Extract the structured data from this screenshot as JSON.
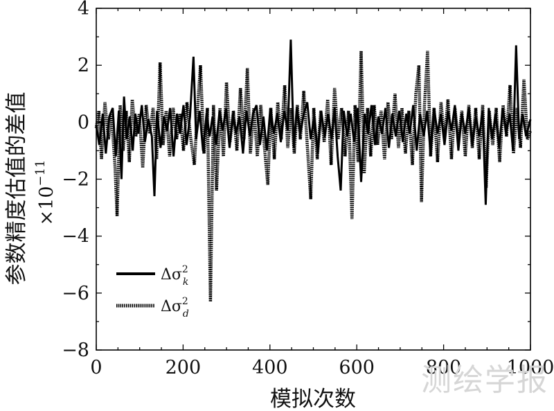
{
  "chart_data": {
    "type": "line",
    "title": "",
    "xlabel": "模拟次数",
    "ylabel": "参数精度估值的差值",
    "y_multiplier": "×10",
    "y_multiplier_exponent": "−11",
    "xlim": [
      0,
      1000
    ],
    "ylim": [
      -8,
      4
    ],
    "x_ticks": [
      0,
      200,
      400,
      600,
      800,
      1000
    ],
    "x_tick_labels": [
      "0",
      "200",
      "400",
      "600",
      "800",
      "1000"
    ],
    "y_ticks": [
      4,
      2,
      0,
      -2,
      -4,
      -6,
      -8
    ],
    "y_tick_labels": [
      "4",
      "2",
      "0",
      "−2",
      "−4",
      "−6",
      "−8"
    ],
    "grid": false,
    "legend_position": "lower-left",
    "series": [
      {
        "name": "Δσ_k^2",
        "label_main": "Δσ",
        "label_sup": "2",
        "label_sub": "k",
        "style": "solid",
        "color": "#000000",
        "points": [
          [
            0,
            -0.1
          ],
          [
            7,
            -0.8
          ],
          [
            15,
            0.3
          ],
          [
            22,
            -1.1
          ],
          [
            30,
            0.2
          ],
          [
            38,
            0.5
          ],
          [
            45,
            -1.2
          ],
          [
            52,
            0.4
          ],
          [
            58,
            -2.0
          ],
          [
            64,
            0.9
          ],
          [
            70,
            -0.6
          ],
          [
            77,
            0.2
          ],
          [
            84,
            -1.0
          ],
          [
            90,
            0.3
          ],
          [
            97,
            -0.4
          ],
          [
            105,
            0.6
          ],
          [
            112,
            -0.7
          ],
          [
            120,
            0.1
          ],
          [
            128,
            -0.5
          ],
          [
            134,
            -2.6
          ],
          [
            140,
            0.4
          ],
          [
            148,
            -0.9
          ],
          [
            156,
            0.2
          ],
          [
            163,
            -0.3
          ],
          [
            170,
            0.5
          ],
          [
            178,
            -1.2
          ],
          [
            186,
            0.3
          ],
          [
            193,
            -0.4
          ],
          [
            201,
            0.6
          ],
          [
            208,
            -0.8
          ],
          [
            216,
            0.2
          ],
          [
            224,
            2.3
          ],
          [
            230,
            -0.6
          ],
          [
            238,
            0.4
          ],
          [
            246,
            -1.0
          ],
          [
            254,
            0.3
          ],
          [
            261,
            -0.5
          ],
          [
            268,
            0.2
          ],
          [
            276,
            -0.8
          ],
          [
            284,
            0.4
          ],
          [
            291,
            -0.3
          ],
          [
            299,
            0.5
          ],
          [
            307,
            -0.9
          ],
          [
            315,
            0.3
          ],
          [
            322,
            -0.4
          ],
          [
            330,
            0.2
          ],
          [
            338,
            -1.1
          ],
          [
            346,
            0.4
          ],
          [
            354,
            -0.5
          ],
          [
            361,
            0.3
          ],
          [
            369,
            0.6
          ],
          [
            377,
            -0.8
          ],
          [
            385,
            0.2
          ],
          [
            393,
            -1.0
          ],
          [
            401,
            0.5
          ],
          [
            409,
            -0.4
          ],
          [
            417,
            0.3
          ],
          [
            425,
            -0.7
          ],
          [
            433,
            0.4
          ],
          [
            441,
            -0.3
          ],
          [
            448,
            2.9
          ],
          [
            455,
            -0.9
          ],
          [
            462,
            0.5
          ],
          [
            470,
            -0.4
          ],
          [
            478,
            0.3
          ],
          [
            486,
            0.7
          ],
          [
            494,
            -0.6
          ],
          [
            502,
            0.2
          ],
          [
            510,
            -1.1
          ],
          [
            518,
            0.4
          ],
          [
            526,
            -0.5
          ],
          [
            534,
            0.3
          ],
          [
            542,
            -0.6
          ],
          [
            549,
            0.5
          ],
          [
            556,
            -1.2
          ],
          [
            563,
            -2.4
          ],
          [
            570,
            0.4
          ],
          [
            578,
            -0.5
          ],
          [
            586,
            0.3
          ],
          [
            594,
            -0.7
          ],
          [
            602,
            0.5
          ],
          [
            610,
            -2.1
          ],
          [
            618,
            0.3
          ],
          [
            626,
            -0.4
          ],
          [
            634,
            0.6
          ],
          [
            642,
            -0.8
          ],
          [
            650,
            0.2
          ],
          [
            658,
            -0.4
          ],
          [
            666,
            0.5
          ],
          [
            674,
            -0.9
          ],
          [
            682,
            0.3
          ],
          [
            690,
            -0.5
          ],
          [
            698,
            0.4
          ],
          [
            706,
            -0.7
          ],
          [
            714,
            0.3
          ],
          [
            722,
            -0.4
          ],
          [
            730,
            0.6
          ],
          [
            738,
            -1.0
          ],
          [
            746,
            0.3
          ],
          [
            754,
            -0.5
          ],
          [
            762,
            0.4
          ],
          [
            770,
            -1.1
          ],
          [
            778,
            0.5
          ],
          [
            786,
            -0.4
          ],
          [
            794,
            0.3
          ],
          [
            802,
            -0.8
          ],
          [
            810,
            0.4
          ],
          [
            818,
            -0.3
          ],
          [
            826,
            0.6
          ],
          [
            834,
            -1.0
          ],
          [
            842,
            0.3
          ],
          [
            850,
            -0.4
          ],
          [
            858,
            0.5
          ],
          [
            866,
            -0.8
          ],
          [
            874,
            0.2
          ],
          [
            882,
            -0.5
          ],
          [
            890,
            0.4
          ],
          [
            897,
            -2.9
          ],
          [
            904,
            0.5
          ],
          [
            912,
            -0.6
          ],
          [
            920,
            0.3
          ],
          [
            928,
            -0.9
          ],
          [
            936,
            0.5
          ],
          [
            944,
            -0.4
          ],
          [
            952,
            0.3
          ],
          [
            960,
            -1.0
          ],
          [
            967,
            2.7
          ],
          [
            974,
            -0.6
          ],
          [
            982,
            0.3
          ],
          [
            990,
            -0.5
          ],
          [
            1000,
            0.1
          ]
        ]
      },
      {
        "name": "Δσ_d^2",
        "label_main": "Δσ",
        "label_sup": "2",
        "label_sub": "d",
        "style": "dotted",
        "color": "#000000",
        "points": [
          [
            0,
            -0.2
          ],
          [
            6,
            0.4
          ],
          [
            12,
            -1.3
          ],
          [
            20,
            0.7
          ],
          [
            28,
            -0.6
          ],
          [
            35,
            0.3
          ],
          [
            43,
            -1.5
          ],
          [
            48,
            -3.3
          ],
          [
            55,
            0.6
          ],
          [
            62,
            -1.0
          ],
          [
            69,
            0.4
          ],
          [
            76,
            -1.4
          ],
          [
            83,
            0.8
          ],
          [
            91,
            -0.5
          ],
          [
            99,
            0.3
          ],
          [
            107,
            -1.6
          ],
          [
            115,
            0.6
          ],
          [
            123,
            -0.4
          ],
          [
            131,
            0.5
          ],
          [
            139,
            -1.3
          ],
          [
            147,
            2.1
          ],
          [
            154,
            -0.8
          ],
          [
            161,
            0.4
          ],
          [
            169,
            -1.2
          ],
          [
            177,
            0.5
          ],
          [
            185,
            -0.6
          ],
          [
            193,
            0.3
          ],
          [
            201,
            -1.0
          ],
          [
            209,
            0.7
          ],
          [
            217,
            -0.5
          ],
          [
            226,
            -1.5
          ],
          [
            233,
            0.4
          ],
          [
            240,
            2.0
          ],
          [
            248,
            -1.1
          ],
          [
            256,
            0.5
          ],
          [
            263,
            -6.3
          ],
          [
            270,
            0.6
          ],
          [
            277,
            -2.4
          ],
          [
            285,
            0.5
          ],
          [
            293,
            -1.2
          ],
          [
            300,
            1.4
          ],
          [
            308,
            -0.7
          ],
          [
            316,
            0.4
          ],
          [
            324,
            -1.0
          ],
          [
            332,
            1.2
          ],
          [
            340,
            -0.6
          ],
          [
            348,
            1.9
          ],
          [
            355,
            -1.1
          ],
          [
            363,
            0.5
          ],
          [
            371,
            -1.2
          ],
          [
            379,
            0.6
          ],
          [
            387,
            -0.8
          ],
          [
            395,
            -2.2
          ],
          [
            402,
            0.5
          ],
          [
            410,
            -1.3
          ],
          [
            418,
            0.7
          ],
          [
            426,
            -0.6
          ],
          [
            434,
            1.3
          ],
          [
            441,
            -0.9
          ],
          [
            449,
            0.5
          ],
          [
            456,
            -1.1
          ],
          [
            463,
            0.6
          ],
          [
            470,
            -0.6
          ],
          [
            478,
            1.1
          ],
          [
            486,
            -0.8
          ],
          [
            494,
            -2.7
          ],
          [
            501,
            0.5
          ],
          [
            509,
            -1.3
          ],
          [
            517,
            0.4
          ],
          [
            525,
            -0.7
          ],
          [
            533,
            0.8
          ],
          [
            541,
            -1.5
          ],
          [
            549,
            1.2
          ],
          [
            557,
            -0.6
          ],
          [
            565,
            0.5
          ],
          [
            573,
            -1.2
          ],
          [
            581,
            0.4
          ],
          [
            589,
            -3.4
          ],
          [
            596,
            0.6
          ],
          [
            603,
            -1.4
          ],
          [
            610,
            2.5
          ],
          [
            617,
            -1.8
          ],
          [
            625,
            0.5
          ],
          [
            632,
            -1.2
          ],
          [
            640,
            0.6
          ],
          [
            648,
            -0.8
          ],
          [
            656,
            0.4
          ],
          [
            664,
            -1.3
          ],
          [
            672,
            0.7
          ],
          [
            680,
            -0.6
          ],
          [
            688,
            1.0
          ],
          [
            696,
            -0.9
          ],
          [
            704,
            0.5
          ],
          [
            712,
            -1.1
          ],
          [
            720,
            0.4
          ],
          [
            728,
            -1.5
          ],
          [
            736,
            1.0
          ],
          [
            743,
            2.0
          ],
          [
            749,
            -2.8
          ],
          [
            756,
            0.6
          ],
          [
            763,
            2.5
          ],
          [
            770,
            -1.2
          ],
          [
            778,
            0.5
          ],
          [
            786,
            -1.4
          ],
          [
            794,
            0.7
          ],
          [
            802,
            -0.6
          ],
          [
            810,
            0.8
          ],
          [
            818,
            -1.3
          ],
          [
            826,
            0.5
          ],
          [
            834,
            -0.7
          ],
          [
            842,
            0.4
          ],
          [
            850,
            -1.2
          ],
          [
            858,
            0.6
          ],
          [
            866,
            -0.9
          ],
          [
            874,
            0.5
          ],
          [
            882,
            -1.3
          ],
          [
            890,
            0.6
          ],
          [
            898,
            -2.3
          ],
          [
            905,
            0.4
          ],
          [
            913,
            -0.8
          ],
          [
            921,
            0.5
          ],
          [
            929,
            -1.4
          ],
          [
            937,
            0.6
          ],
          [
            945,
            -0.5
          ],
          [
            953,
            1.3
          ],
          [
            961,
            -1.1
          ],
          [
            969,
            0.5
          ],
          [
            977,
            -0.9
          ],
          [
            985,
            1.5
          ],
          [
            993,
            -0.6
          ],
          [
            1000,
            -0.3
          ]
        ]
      }
    ]
  },
  "watermark": "测绘学报"
}
